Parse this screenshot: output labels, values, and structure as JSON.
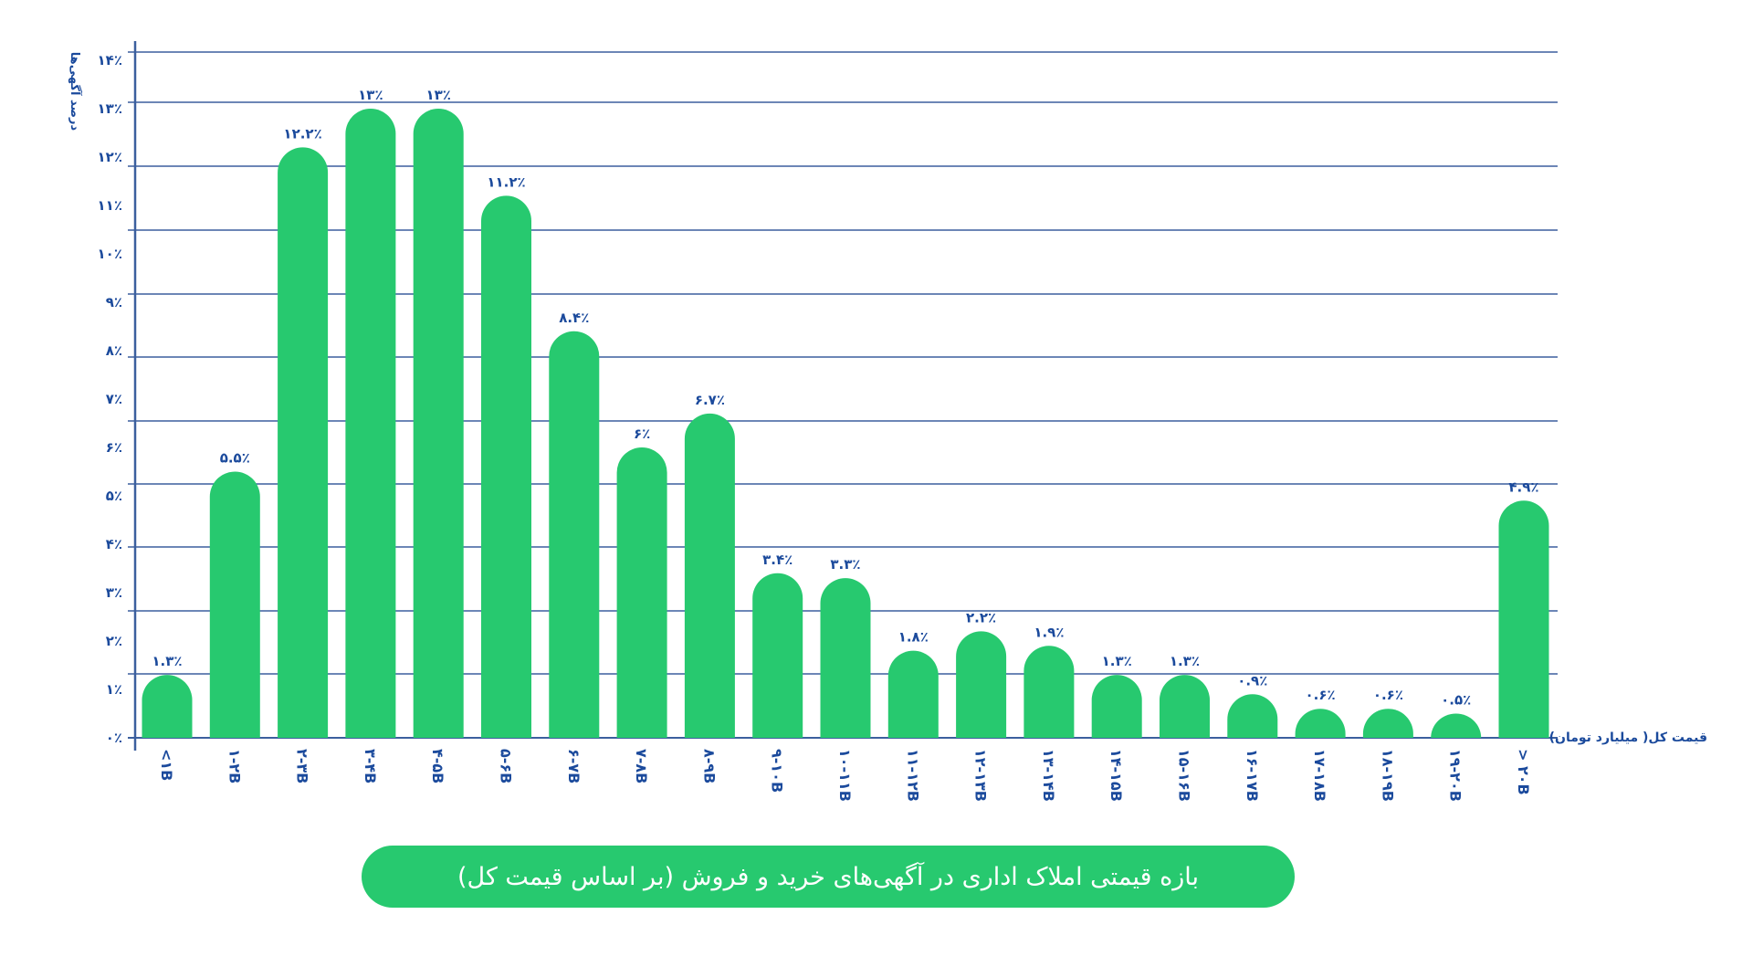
{
  "chart_data": {
    "type": "bar",
    "title": "بازه قیمتی املاک اداری در آگهی‌های خرید و فروش (بر اساس قیمت کل)",
    "ylabel": "درصد آگهی‌ها",
    "xlabel": "قیمت کل( میلیارد تومان)",
    "ylim": [
      0,
      14
    ],
    "yticks": [
      "۰٪",
      "۱٪",
      "۲٪",
      "۳٪",
      "۴٪",
      "۵٪",
      "۶٪",
      "۷٪",
      "۸٪",
      "۹٪",
      "۱۰٪",
      "۱۱٪",
      "۱۲٪",
      "۱۳٪",
      "۱۴٪"
    ],
    "grid": true,
    "categories": [
      "<۱B",
      "۱-۲B",
      "۲-۳B",
      "۳-۴B",
      "۴-۵B",
      "۵-۶B",
      "۶-۷B",
      "۷-۸B",
      "۸-۹B",
      "۹-۱۰B",
      "۱۰-۱۱B",
      "۱۱-۱۲B",
      "۱۲-۱۳B",
      "۱۳-۱۴B",
      "۱۴-۱۵B",
      "۱۵-۱۶B",
      "۱۶-۱۷B",
      "۱۷-۱۸B",
      "۱۸-۱۹B",
      "۱۹-۲۰B",
      "> ۲۰B"
    ],
    "values": [
      1.3,
      5.5,
      12.2,
      13,
      13,
      11.2,
      8.4,
      6,
      6.7,
      3.4,
      3.3,
      1.8,
      2.2,
      1.9,
      1.3,
      1.3,
      0.9,
      0.6,
      0.6,
      0.5,
      4.9
    ],
    "data_labels": [
      "۱.۳٪",
      "۵.۵٪",
      "۱۲.۲٪",
      "۱۳٪",
      "۱۳٪",
      "۱۱.۲٪",
      "۸.۴٪",
      "۶٪",
      "۶.۷٪",
      "۳.۴٪",
      "۳.۳٪",
      "۱.۸٪",
      "۲.۲٪",
      "۱.۹٪",
      "۱.۳٪",
      "۱.۳٪",
      "۰.۹٪",
      "۰.۶٪",
      "۰.۶٪",
      "۰.۵٪",
      "۴.۹٪"
    ],
    "colors": {
      "bar": "#27c96f",
      "text": "#1b4a9c",
      "grid": "#3b5f9e"
    }
  }
}
